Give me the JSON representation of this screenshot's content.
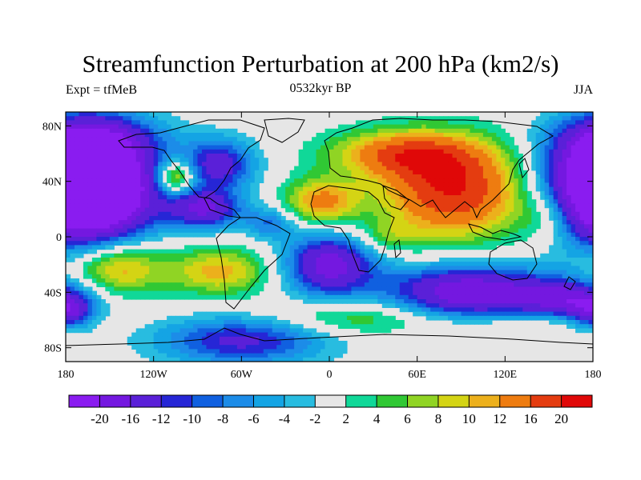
{
  "title": "Streamfunction Perturbation at 200 hPa (km2/s)",
  "subtitle_left": "Expt = tfMeB",
  "subtitle_center": "0532kyr BP",
  "subtitle_right": "JJA",
  "y_ticks": [
    "80N",
    "40N",
    "0",
    "40S",
    "80S"
  ],
  "x_ticks": [
    "180",
    "120W",
    "60W",
    "0",
    "60E",
    "120E",
    "180"
  ],
  "colorbar": {
    "labels": [
      "-20",
      "-16",
      "-12",
      "-10",
      "-8",
      "-6",
      "-4",
      "-2",
      "2",
      "4",
      "6",
      "8",
      "10",
      "12",
      "16",
      "20"
    ],
    "levels": [
      -24,
      -20,
      -16,
      -12,
      -10,
      -8,
      -6,
      -4,
      -2,
      2,
      4,
      6,
      8,
      10,
      12,
      16,
      20,
      24
    ],
    "colors": [
      "#8a1cf0",
      "#7418e0",
      "#5a20d8",
      "#2626d6",
      "#1060e0",
      "#1c8ce8",
      "#14a4e4",
      "#28bce0",
      "#e6e6e6",
      "#10d898",
      "#30c834",
      "#90d424",
      "#d4d414",
      "#ecb01c",
      "#ee7c10",
      "#e43c10",
      "#e00808"
    ]
  },
  "chart_data": {
    "type": "heatmap",
    "xlim": [
      -180,
      180
    ],
    "ylim": [
      -90,
      90
    ],
    "units": "km2/s",
    "centers": [
      {
        "lon": -165,
        "lat": 38,
        "value": -22,
        "r_lon": 30,
        "r_lat": 28
      },
      {
        "lon": 195,
        "lat": 38,
        "value": -22,
        "r_lon": 30,
        "r_lat": 28
      },
      {
        "lon": -75,
        "lat": 52,
        "value": -14,
        "r_lon": 17,
        "r_lat": 13
      },
      {
        "lon": -85,
        "lat": 20,
        "value": -16,
        "r_lon": 18,
        "r_lat": 10
      },
      {
        "lon": -105,
        "lat": 43,
        "value": 15,
        "r_lon": 9,
        "r_lat": 8
      },
      {
        "lon": -5,
        "lat": 25,
        "value": 13,
        "r_lon": 18,
        "r_lat": 12
      },
      {
        "lon": 85,
        "lat": 33,
        "value": 20,
        "r_lon": 35,
        "r_lat": 24
      },
      {
        "lon": 50,
        "lat": 60,
        "value": 14,
        "r_lon": 35,
        "r_lat": 12
      },
      {
        "lon": 0,
        "lat": -20,
        "value": -18,
        "r_lon": 22,
        "r_lat": 16
      },
      {
        "lon": 95,
        "lat": -40,
        "value": -20,
        "r_lon": 40,
        "r_lat": 14
      },
      {
        "lon": -145,
        "lat": -22,
        "value": 13,
        "r_lon": 22,
        "r_lat": 14
      },
      {
        "lon": -75,
        "lat": -25,
        "value": 11,
        "r_lon": 25,
        "r_lat": 12
      },
      {
        "lon": -60,
        "lat": -75,
        "value": -13,
        "r_lon": 40,
        "r_lat": 12
      },
      {
        "lon": 165,
        "lat": -45,
        "value": -14,
        "r_lon": 25,
        "r_lat": 10
      },
      {
        "lon": -178,
        "lat": -55,
        "value": -12,
        "r_lon": 12,
        "r_lat": 8
      },
      {
        "lon": 20,
        "lat": -58,
        "value": 7,
        "r_lon": 40,
        "r_lat": 9
      },
      {
        "lon": 130,
        "lat": -62,
        "value": 4,
        "r_lon": 40,
        "r_lat": 6
      },
      {
        "lon": -160,
        "lat": 72,
        "value": -6,
        "r_lon": 35,
        "r_lat": 10
      },
      {
        "lon": -40,
        "lat": 10,
        "value": -8,
        "r_lon": 12,
        "r_lat": 8
      },
      {
        "lon": 150,
        "lat": 15,
        "value": 6,
        "r_lon": 15,
        "r_lat": 14
      },
      {
        "lon": 40,
        "lat": 0,
        "value": 5,
        "r_lon": 15,
        "r_lat": 8
      }
    ]
  }
}
